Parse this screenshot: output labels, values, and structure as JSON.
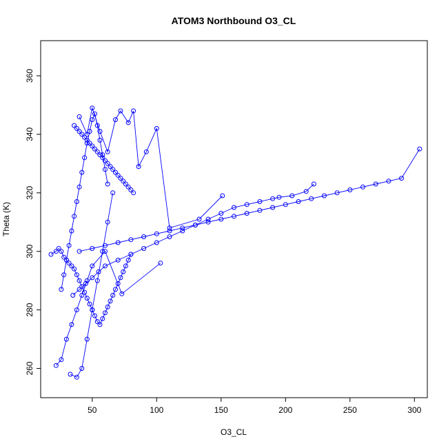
{
  "chart_data": {
    "type": "scatter",
    "title": "ATOM3 Northbound O3_CL",
    "xlabel": "O3_CL",
    "ylabel": "Theta (K)",
    "xlim": [
      10,
      310
    ],
    "ylim": [
      250,
      372
    ],
    "x_ticks": [
      50,
      100,
      150,
      200,
      250,
      300
    ],
    "y_ticks": [
      260,
      280,
      300,
      320,
      340,
      360
    ],
    "grid": false,
    "legend": "none",
    "marker": "open-circle",
    "connected": true,
    "color": "#0000ff",
    "series": [
      {
        "x": [
          18,
          22,
          24,
          26,
          28,
          30,
          32,
          34,
          36,
          38,
          40,
          42,
          44,
          46,
          48,
          50,
          52,
          54,
          56,
          58,
          60,
          62,
          64,
          66,
          68,
          70,
          72,
          74,
          76,
          78,
          80
        ],
        "y": [
          299,
          300,
          301,
          300,
          298,
          297,
          296,
          295,
          294,
          292,
          290,
          288,
          286,
          284,
          282,
          280,
          278,
          276,
          275,
          277,
          279,
          281,
          283,
          285,
          287,
          289,
          291,
          293,
          295,
          297,
          299
        ]
      },
      {
        "x": [
          26,
          28,
          30,
          32,
          34,
          36,
          38,
          40,
          42,
          44,
          46,
          48,
          50,
          52,
          54,
          56,
          58,
          60,
          62
        ],
        "y": [
          287,
          292,
          297,
          302,
          307,
          312,
          317,
          322,
          327,
          332,
          337,
          341,
          345,
          347,
          343,
          338,
          333,
          328,
          323
        ]
      },
      {
        "x": [
          36,
          38,
          40,
          42,
          44,
          46,
          48,
          50,
          52,
          54,
          56,
          58,
          60,
          62,
          64,
          66,
          68,
          70,
          72,
          74,
          76,
          78,
          80,
          82
        ],
        "y": [
          343,
          342,
          341,
          340,
          339,
          338,
          337,
          336,
          335,
          334,
          333,
          332,
          331,
          330,
          329,
          328,
          327,
          326,
          325,
          324,
          323,
          322,
          321,
          320
        ]
      },
      {
        "x": [
          40,
          50,
          60,
          70,
          80,
          90,
          100,
          110,
          120,
          130,
          140,
          150,
          160,
          170,
          180,
          190,
          200,
          210,
          220,
          230,
          240,
          250,
          260,
          270,
          280,
          290,
          304
        ],
        "y": [
          300,
          301,
          302,
          303,
          304,
          305,
          306,
          307,
          308,
          309,
          310,
          311,
          312,
          313,
          314,
          315,
          316,
          317,
          318,
          319,
          320,
          321,
          322,
          323,
          324,
          325,
          335
        ]
      },
      {
        "x": [
          35,
          40,
          45,
          50,
          55,
          60,
          70,
          80,
          90,
          100,
          110,
          120,
          130,
          140,
          150,
          160,
          170,
          180,
          190,
          195,
          205,
          216,
          222
        ],
        "y": [
          285,
          287,
          289,
          291,
          293,
          295,
          297,
          299,
          301,
          303,
          305,
          307,
          309,
          311,
          313,
          315,
          316,
          317,
          318,
          318.5,
          319,
          320.5,
          323
        ]
      },
      {
        "x": [
          22,
          26,
          30,
          34,
          38,
          42,
          46,
          50,
          60,
          73,
          103
        ],
        "y": [
          261,
          263,
          270,
          275,
          280,
          285,
          290,
          295,
          300,
          285.5,
          296
        ]
      },
      {
        "x": [
          33,
          38,
          42,
          46,
          50,
          54,
          58,
          62,
          66
        ],
        "y": [
          258,
          257,
          260,
          270,
          280,
          290,
          300,
          310,
          320
        ]
      },
      {
        "x": [
          40,
          46,
          50,
          56,
          62,
          68,
          72,
          78,
          82,
          86,
          92,
          100,
          110,
          133,
          151
        ],
        "y": [
          346,
          340,
          349,
          341,
          334,
          345,
          348,
          344,
          348,
          329,
          334,
          342,
          308,
          311,
          319
        ]
      }
    ]
  }
}
